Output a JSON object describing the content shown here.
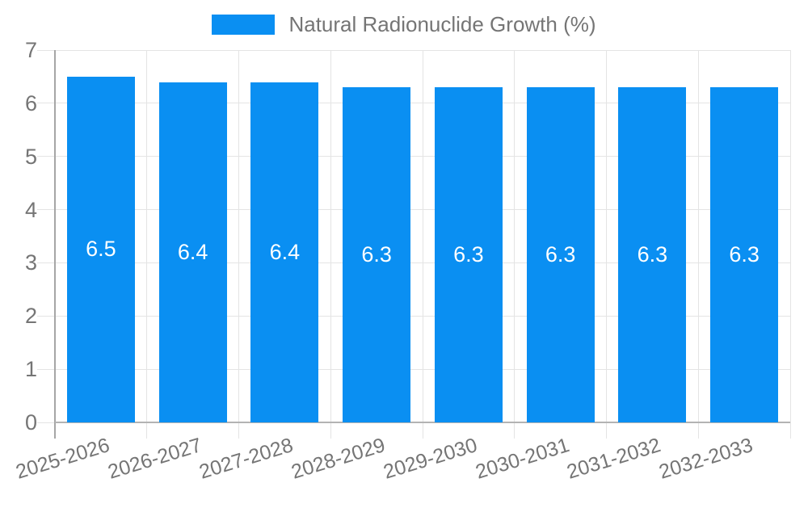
{
  "chart_data": {
    "type": "bar",
    "title": "Natural Radionuclide Growth (%)",
    "legend": [
      "Natural Radionuclide Growth (%)"
    ],
    "legend_position": "top-center",
    "categories": [
      "2025-2026",
      "2026-2027",
      "2027-2028",
      "2028-2029",
      "2029-2030",
      "2030-2031",
      "2031-2032",
      "2032-2033"
    ],
    "values": [
      6.5,
      6.4,
      6.4,
      6.3,
      6.3,
      6.3,
      6.3,
      6.3
    ],
    "bar_value_labels": [
      "6.5",
      "6.4",
      "6.4",
      "6.3",
      "6.3",
      "6.3",
      "6.3",
      "6.3"
    ],
    "xlabel": "",
    "ylabel": "",
    "ylim": [
      0,
      7
    ],
    "yticks": [
      0,
      1,
      2,
      3,
      4,
      5,
      6,
      7
    ],
    "grid": "on",
    "colors": {
      "bar": "#0a8ff2",
      "axis_text": "#757575",
      "value_text": "#ffffff",
      "grid_line": "#e4e4e4",
      "axis_line": "#a6a6a6"
    }
  }
}
